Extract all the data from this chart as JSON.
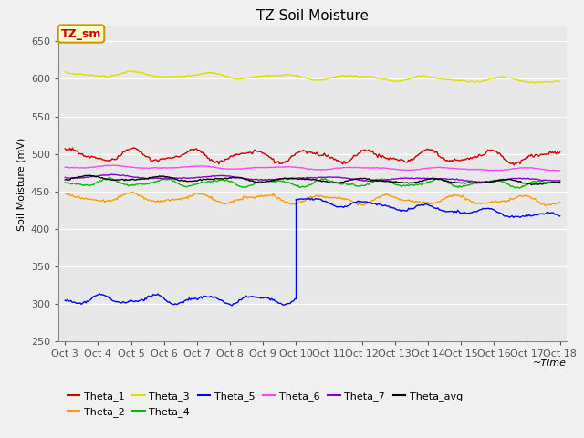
{
  "title": "TZ Soil Moisture",
  "xlabel": "~Time",
  "ylabel": "Soil Moisture (mV)",
  "ylim": [
    250,
    670
  ],
  "yticks": [
    250,
    300,
    350,
    400,
    450,
    500,
    550,
    600,
    650
  ],
  "date_labels": [
    "Oct 3",
    "Oct 4",
    "Oct 5",
    "Oct 6",
    "Oct 7",
    "Oct 8",
    "Oct 9",
    "Oct 10",
    "Oct 11",
    "Oct 12",
    "Oct 13",
    "Oct 14",
    "Oct 15",
    "Oct 16",
    "Oct 17",
    "Oct 18"
  ],
  "background_color": "#e8e8e8",
  "fig_bg_color": "#f0f0f0",
  "legend_box_label": "TZ_sm",
  "legend_box_bg": "#ffffcc",
  "legend_box_border": "#cc9900",
  "series": {
    "Theta_1": {
      "color": "#cc0000",
      "base": 498,
      "amplitude": 7,
      "freq": 3.5,
      "trend": -0.15
    },
    "Theta_2": {
      "color": "#ff9900",
      "base": 442,
      "amplitude": 5,
      "freq": 3.2,
      "trend": -0.3
    },
    "Theta_3": {
      "color": "#dddd00",
      "base": 607,
      "amplitude": 3,
      "freq": 2.8,
      "trend": -0.65
    },
    "Theta_4": {
      "color": "#00bb00",
      "base": 462,
      "amplitude": 4,
      "freq": 3.8,
      "trend": -0.1
    },
    "Theta_6": {
      "color": "#ff44ff",
      "base": 483,
      "amplitude": 1.5,
      "freq": 2.5,
      "trend": -0.25
    },
    "Theta_7": {
      "color": "#8800cc",
      "base": 470,
      "amplitude": 2,
      "freq": 2.0,
      "trend": -0.35
    },
    "Theta_avg": {
      "color": "#000000",
      "base": 468,
      "amplitude": 2.5,
      "freq": 3.0,
      "trend": -0.4
    }
  },
  "theta5": {
    "color": "#0000ff",
    "base_before": 306,
    "amplitude_before": 5,
    "freq_before": 4.0,
    "base_after": 458,
    "amplitude_after": 4,
    "freq_after": 3.5,
    "trend_after": -2.8
  },
  "title_fontsize": 11,
  "axis_label_fontsize": 8,
  "tick_fontsize": 8,
  "legend_fontsize": 8
}
